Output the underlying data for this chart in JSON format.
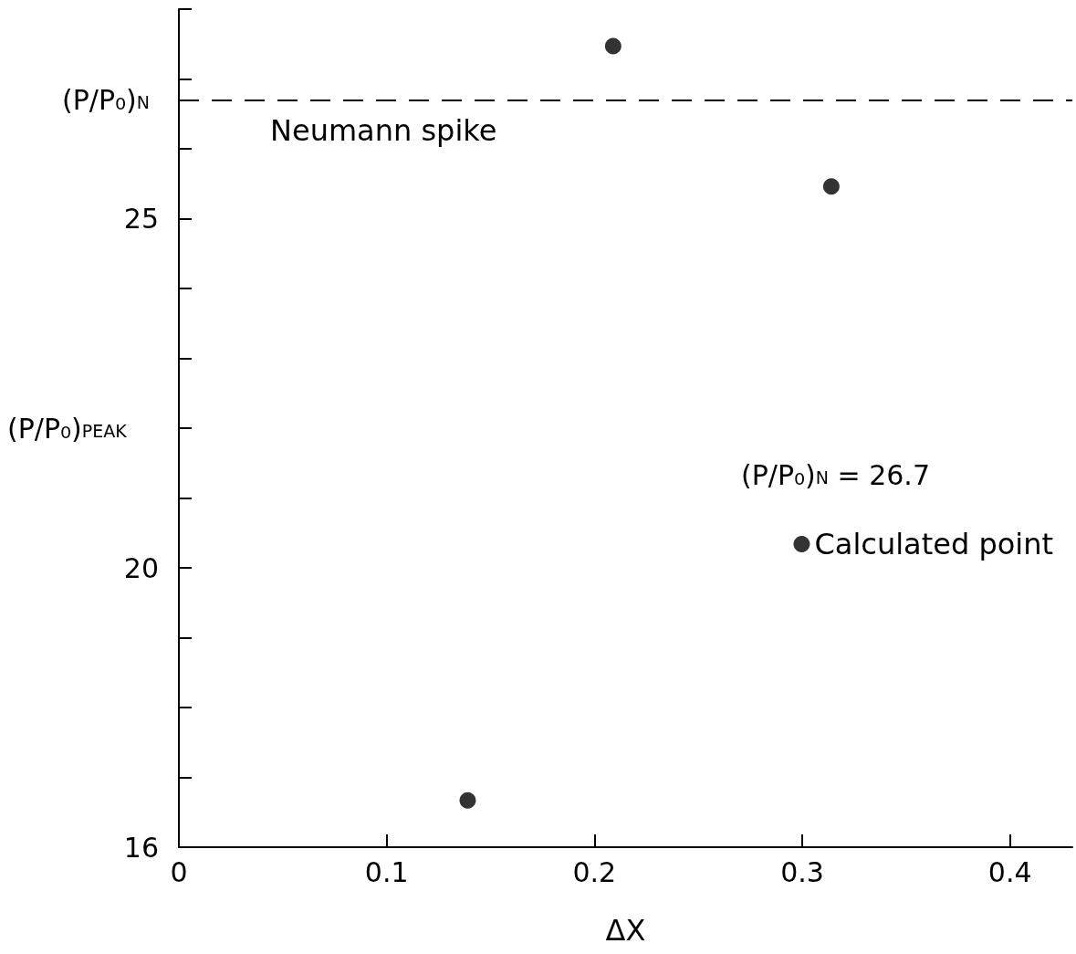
{
  "chart_data": {
    "type": "scatter",
    "xlabel": "ΔX",
    "ylabel": "(P/P₀)$_{PEAK}$",
    "xlim": [
      0,
      0.43
    ],
    "xticks": [
      0,
      0.1,
      0.2,
      0.3,
      0.4
    ],
    "ylim": [
      16,
      28
    ],
    "yticks": [
      16,
      {
        "value": 17,
        "label": null
      },
      {
        "value": 18,
        "label": null
      },
      {
        "value": 19,
        "label": null
      },
      20,
      {
        "value": 21,
        "label": null
      },
      {
        "value": 22,
        "label": null
      },
      {
        "value": 23,
        "label": null
      },
      {
        "value": 24,
        "label": null
      },
      25,
      {
        "value": 26,
        "label": null
      },
      {
        "value": 27,
        "label": null
      },
      {
        "value": 28,
        "label": null
      }
    ],
    "series": [
      {
        "name": "Calculated point",
        "color": "#000000",
        "x": [
          0.139,
          0.209,
          0.314
        ],
        "values": [
          16.67,
          27.47,
          25.46
        ]
      }
    ],
    "ref_lines": [
      {
        "axis": "y",
        "value": 26.7,
        "label": "Neumann spike",
        "line_style": "dashed",
        "color": "#000000"
      }
    ],
    "annotations": [
      "(P/P₀)$_{N}$",
      "(P/P₀)$_{N}$ = 26.7"
    ],
    "marker": "circle",
    "grid": false,
    "legend": "right"
  }
}
